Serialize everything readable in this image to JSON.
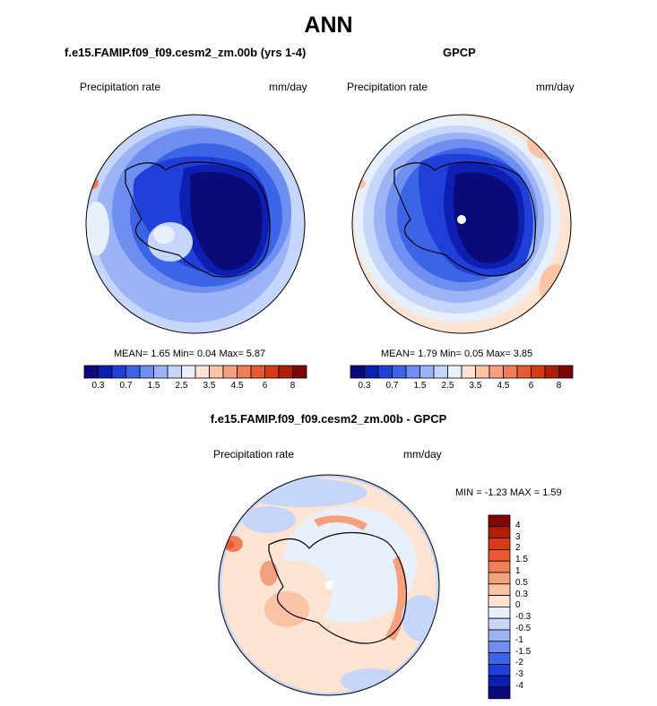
{
  "figure": {
    "title": "ANN",
    "panels": [
      {
        "title": "f.e15.FAMIP.f09_f09.cesm2_zm.00b (yrs 1-4)",
        "variable_label": "Precipitation rate",
        "units": "mm/day",
        "stats": {
          "mean_label": "MEAN=",
          "mean": "1.65",
          "min_label": "Min=",
          "min": "0.04",
          "max_label": "Max=",
          "max": "5.87"
        }
      },
      {
        "title": "GPCP",
        "variable_label": "Precipitation rate",
        "units": "mm/day",
        "stats": {
          "mean_label": "MEAN=",
          "mean": "1.79",
          "min_label": "Min=",
          "min": "0.05",
          "max_label": "Max=",
          "max": "3.85"
        }
      },
      {
        "title": "f.e15.FAMIP.f09_f09.cesm2_zm.00b - GPCP",
        "variable_label": "Precipitation rate",
        "units": "mm/day",
        "stats": {
          "min_label": "MIN =",
          "min": "-1.23",
          "max_label": "MAX =",
          "max": "1.59"
        }
      }
    ]
  },
  "chart_data": [
    {
      "type": "heatmap",
      "projection": "south-polar-stereographic",
      "title": "f.e15.FAMIP.f09_f09.cesm2_zm.00b (yrs 1-4)",
      "variable": "Precipitation rate",
      "units": "mm/day",
      "mean": 1.65,
      "min": 0.04,
      "max": 5.87,
      "contour_levels": [
        0.2,
        0.3,
        0.5,
        0.7,
        1,
        1.5,
        2,
        2.5,
        3,
        3.5,
        4,
        4.5,
        5,
        6,
        7,
        8
      ],
      "colorbar_labels": [
        "0.3",
        "0.7",
        "1.5",
        "2.5",
        "3.5",
        "4.5",
        "6",
        "8"
      ],
      "colorbar_colors": [
        "#0a0a78",
        "#0d1fb0",
        "#1f3fd8",
        "#3c64e6",
        "#6e8ef0",
        "#9cb4f6",
        "#c6d6fa",
        "#e8f0fc",
        "#fde3d2",
        "#f9c3a6",
        "#f5a07e",
        "#f07c58",
        "#e85a30",
        "#d83a14",
        "#b01e08",
        "#7e0606"
      ],
      "colorbar_orientation": "horizontal"
    },
    {
      "type": "heatmap",
      "projection": "south-polar-stereographic",
      "title": "GPCP",
      "variable": "Precipitation rate",
      "units": "mm/day",
      "mean": 1.79,
      "min": 0.05,
      "max": 3.85,
      "contour_levels": [
        0.2,
        0.3,
        0.5,
        0.7,
        1,
        1.5,
        2,
        2.5,
        3,
        3.5,
        4,
        4.5,
        5,
        6,
        7,
        8
      ],
      "colorbar_labels": [
        "0.3",
        "0.7",
        "1.5",
        "2.5",
        "3.5",
        "4.5",
        "6",
        "8"
      ],
      "colorbar_colors": [
        "#0a0a78",
        "#0d1fb0",
        "#1f3fd8",
        "#3c64e6",
        "#6e8ef0",
        "#9cb4f6",
        "#c6d6fa",
        "#e8f0fc",
        "#fde3d2",
        "#f9c3a6",
        "#f5a07e",
        "#f07c58",
        "#e85a30",
        "#d83a14",
        "#b01e08",
        "#7e0606"
      ],
      "colorbar_orientation": "horizontal"
    },
    {
      "type": "heatmap",
      "projection": "south-polar-stereographic",
      "title": "f.e15.FAMIP.f09_f09.cesm2_zm.00b - GPCP",
      "variable": "Precipitation rate",
      "units": "mm/day",
      "min": -1.23,
      "max": 1.59,
      "contour_levels": [
        -4,
        -3,
        -2,
        -1.5,
        -1,
        -0.5,
        -0.3,
        0,
        0.3,
        0.5,
        1,
        1.5,
        2,
        3,
        4
      ],
      "colorbar_labels": [
        "4",
        "3",
        "2",
        "1.5",
        "1",
        "0.5",
        "0.3",
        "0",
        "-0.3",
        "-0.5",
        "-1",
        "-1.5",
        "-2",
        "-3",
        "-4"
      ],
      "colorbar_colors": [
        "#7e0606",
        "#b01e08",
        "#d83a14",
        "#e85a30",
        "#f07c58",
        "#f5a07e",
        "#f9c3a6",
        "#fde3d2",
        "#e8f0fc",
        "#c6d6fa",
        "#9cb4f6",
        "#6e8ef0",
        "#3c64e6",
        "#1f3fd8",
        "#0d1fb0",
        "#0a0a78"
      ],
      "colorbar_orientation": "vertical"
    }
  ]
}
